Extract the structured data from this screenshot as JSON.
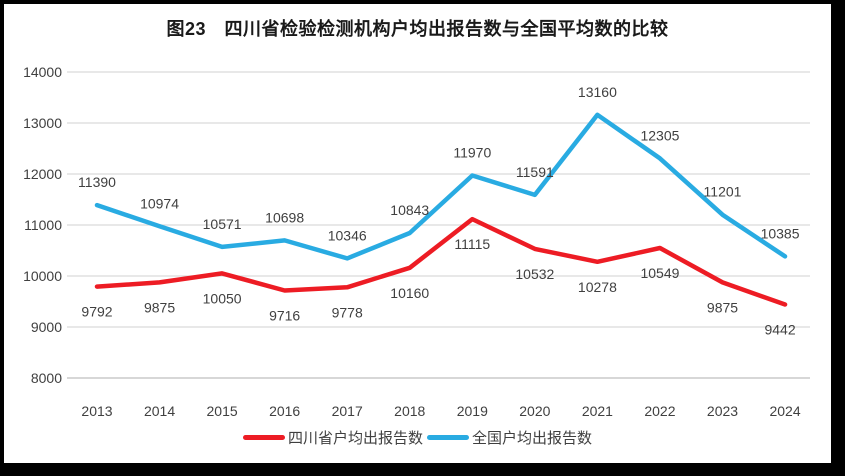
{
  "chart_data": {
    "type": "line",
    "title": "图23　四川省检验检测机构户均出报告数与全国平均数的比较",
    "categories": [
      "2013",
      "2014",
      "2015",
      "2016",
      "2017",
      "2018",
      "2019",
      "2020",
      "2021",
      "2022",
      "2023",
      "2024"
    ],
    "series": [
      {
        "key": "sichuan",
        "name": "四川省户均出报告数",
        "color": "#ed1c24",
        "label_position": "below",
        "values": [
          9792,
          9875,
          10050,
          9716,
          9778,
          10160,
          11115,
          10532,
          10278,
          10549,
          9875,
          9442
        ]
      },
      {
        "key": "national",
        "name": "全国户均出报告数",
        "color": "#29abe2",
        "label_position": "above",
        "values": [
          11390,
          10974,
          10571,
          10698,
          10346,
          10843,
          11970,
          11591,
          13160,
          12305,
          11201,
          10385
        ]
      }
    ],
    "xlabel": "",
    "ylabel": "",
    "ylim": [
      8000,
      14000
    ],
    "yticks": [
      8000,
      9000,
      10000,
      11000,
      12000,
      13000,
      14000
    ],
    "grid": "horizontal",
    "legend_position": "bottom",
    "grid_color": "#d9d9d9",
    "axis_line_color": "#bfbfbf",
    "text_color": "#404040"
  }
}
